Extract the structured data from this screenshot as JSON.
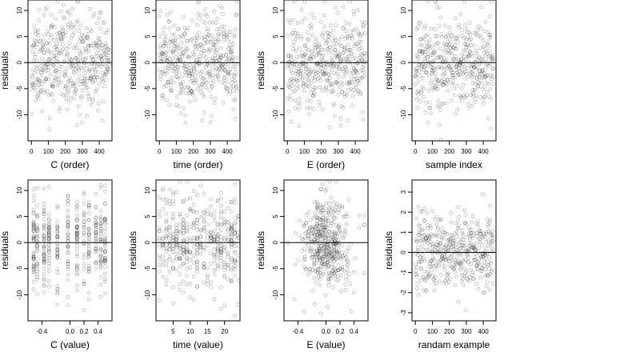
{
  "chart_data": [
    {
      "type": "scatter",
      "xlabel": "C (order)",
      "ylabel": "residuals",
      "xlim": [
        -20,
        475
      ],
      "ylim": [
        -15,
        12
      ],
      "xticks": [
        0,
        100,
        200,
        300,
        400
      ],
      "yticks": [
        -10,
        -5,
        0,
        5,
        10
      ],
      "hline": 0,
      "n_points": 450,
      "points_pattern": "uniform",
      "point_spread_sd": 4.5,
      "seed": 11
    },
    {
      "type": "scatter",
      "xlabel": "time (order)",
      "ylabel": "residuals",
      "xlim": [
        -20,
        475
      ],
      "ylim": [
        -15,
        12
      ],
      "xticks": [
        0,
        100,
        200,
        300,
        400
      ],
      "yticks": [
        -10,
        -5,
        0,
        5,
        10
      ],
      "hline": 0,
      "n_points": 450,
      "points_pattern": "uniform",
      "point_spread_sd": 4.5,
      "seed": 23
    },
    {
      "type": "scatter",
      "xlabel": "E (order)",
      "ylabel": "residuals",
      "xlim": [
        -20,
        475
      ],
      "ylim": [
        -15,
        12
      ],
      "xticks": [
        0,
        100,
        200,
        300,
        400
      ],
      "yticks": [
        -10,
        -5,
        0,
        5,
        10
      ],
      "hline": 0,
      "n_points": 450,
      "points_pattern": "uniform",
      "point_spread_sd": 4.5,
      "seed": 37
    },
    {
      "type": "scatter",
      "xlabel": "sample index",
      "ylabel": "residuals",
      "xlim": [
        -20,
        475
      ],
      "ylim": [
        -15,
        12
      ],
      "xticks": [
        0,
        100,
        200,
        300,
        400
      ],
      "yticks": [
        -10,
        -5,
        0,
        5,
        10
      ],
      "hline": 0,
      "n_points": 450,
      "points_pattern": "uniform",
      "point_spread_sd": 4.5,
      "seed": 41
    },
    {
      "type": "scatter",
      "xlabel": "C (value)",
      "ylabel": "residuals",
      "xlim": [
        -0.6,
        0.6
      ],
      "ylim": [
        -15,
        12
      ],
      "xticks": [
        -0.4,
        0.0,
        0.2,
        0.4
      ],
      "xtick_labels": [
        "-0.4",
        "0.0",
        "0.2",
        "0.4"
      ],
      "yticks": [
        -10,
        -5,
        0,
        5,
        10
      ],
      "hline": 0,
      "n_points": 450,
      "points_pattern": "discrete",
      "x_levels": [
        -0.52,
        -0.47,
        -0.37,
        -0.3,
        -0.18,
        -0.03,
        0.1,
        0.2,
        0.27,
        0.37,
        0.44,
        0.5
      ],
      "point_spread_sd": 4.5,
      "seed": 53
    },
    {
      "type": "scatter",
      "xlabel": "time (value)",
      "ylabel": "residuals",
      "xlim": [
        0,
        24.5
      ],
      "ylim": [
        -15,
        12
      ],
      "xticks": [
        5,
        10,
        15,
        20
      ],
      "yticks": [
        -10,
        -5,
        0,
        5,
        10
      ],
      "hline": 0,
      "n_points": 450,
      "points_pattern": "discrete",
      "x_levels": [
        1,
        2,
        3,
        4,
        5,
        6,
        7,
        8,
        9,
        10,
        11,
        12,
        13,
        14,
        15,
        16,
        17,
        18,
        19,
        20,
        21,
        22,
        23,
        24
      ],
      "point_spread_sd": 4.5,
      "seed": 61
    },
    {
      "type": "scatter",
      "xlabel": "E (value)",
      "ylabel": "residuals",
      "xlim": [
        -0.6,
        0.6
      ],
      "ylim": [
        -15,
        12
      ],
      "xticks": [
        -0.4,
        0.0,
        0.2,
        0.4
      ],
      "xtick_labels": [
        "-0.4",
        "0.0",
        "0.2",
        "0.4"
      ],
      "yticks": [
        -10,
        -5,
        0,
        5,
        10
      ],
      "hline": 0,
      "n_points": 450,
      "points_pattern": "centered",
      "center_x": 0.0,
      "x_spread_sd": 0.18,
      "point_spread_sd": 4.5,
      "seed": 71
    },
    {
      "type": "scatter",
      "xlabel": "randam example",
      "ylabel": "residuals",
      "xlim": [
        -20,
        475
      ],
      "ylim": [
        -3.4,
        3.6
      ],
      "xticks": [
        0,
        100,
        200,
        300,
        400
      ],
      "yticks": [
        -3,
        -2,
        -1,
        0,
        1,
        2,
        3
      ],
      "hline": 0,
      "n_points": 450,
      "points_pattern": "uniform",
      "point_spread_sd": 1.0,
      "seed": 83
    }
  ]
}
